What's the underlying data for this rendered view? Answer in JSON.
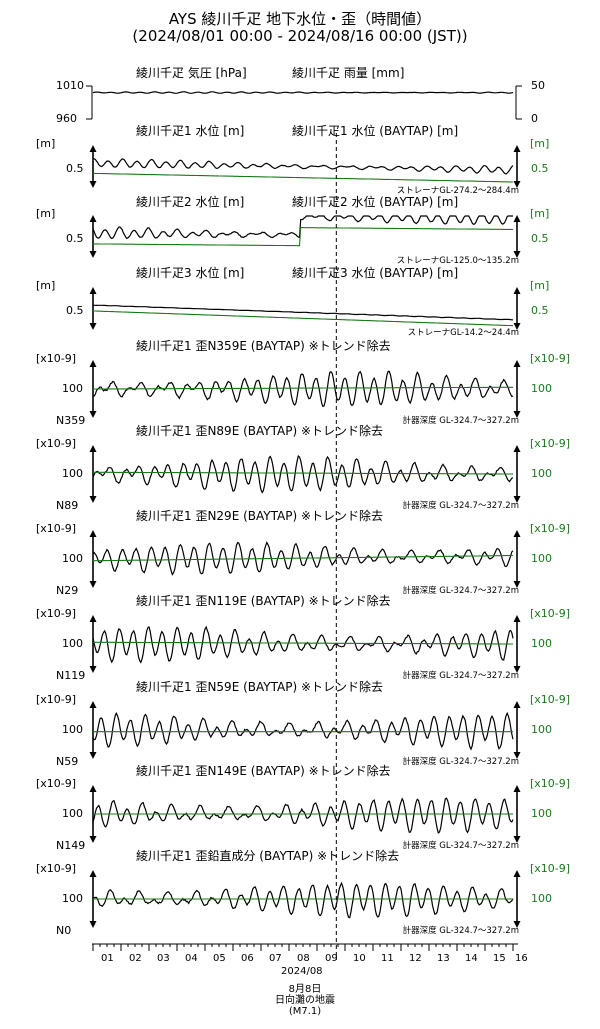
{
  "title": "AYS 綾川千疋 地下水位・歪（時間値）",
  "subtitle": "(2024/08/01 00:00 - 2024/08/16 00:00 (JST))",
  "colors": {
    "observed": "#000000",
    "baytap": "#1a7a1a"
  },
  "chart_data": [
    {
      "type": "line",
      "title_left": "綾川千疋 気圧 [hPa]",
      "title_right": "綾川千疋 雨量 [mm]",
      "left_ticks": [
        "1010",
        "960"
      ],
      "right_ticks": [
        "50",
        "0"
      ],
      "ylim_left": [
        960,
        1010
      ],
      "ylim_right": [
        0,
        50
      ],
      "series": [
        {
          "name": "綾川千疋 気圧 [hPa]",
          "color": "#000000",
          "approx_level": 1000,
          "trend": 0,
          "wave_amp": 0.8,
          "wave_period_days": 0.5
        },
        {
          "name": "綾川千疋 雨量 [mm]",
          "color": "#000000",
          "approx_level": 0,
          "trend": 0,
          "wave_amp": 0,
          "wave_period_days": 1
        }
      ]
    },
    {
      "type": "line",
      "title_left": "綾川千疋1 水位 [m]",
      "title_right": "綾川千疋1 水位 (BAYTAP) [m]",
      "left_unit": "[m]",
      "right_unit": "[m]",
      "left_ticks": [
        "0.5"
      ],
      "right_ticks": [
        "0.5"
      ],
      "note": "ストレーナGL-274.2～284.4m",
      "series": [
        {
          "name": "綾川千疋1 水位 [m]",
          "color": "#000000",
          "approx_level": 0.62,
          "trend": -0.08,
          "wave_amp": 0.035,
          "wave_period_days": 0.5
        },
        {
          "name": "綾川千疋1 水位 (BAYTAP) [m]",
          "color": "#1a7a1a",
          "approx_level": 0.5,
          "trend": -0.1,
          "wave_amp": 0,
          "wave_period_days": 1
        }
      ]
    },
    {
      "type": "line",
      "title_left": "綾川千疋2 水位 [m]",
      "title_right": "綾川千疋2 水位 (BAYTAP) [m]",
      "left_unit": "[m]",
      "right_unit": "[m]",
      "left_ticks": [
        "0.5"
      ],
      "right_ticks": [
        "0.5"
      ],
      "note": "ストレーナGL-125.0～135.2m",
      "step_day": 7.4,
      "step_size": 0.2,
      "series": [
        {
          "name": "綾川千疋2 水位 [m]",
          "color": "#000000",
          "approx_level": 0.52,
          "trend": -0.04,
          "wave_amp": 0.05,
          "wave_period_days": 0.5
        },
        {
          "name": "綾川千疋2 水位 (BAYTAP) [m]",
          "color": "#1a7a1a",
          "approx_level": 0.4,
          "trend": -0.04,
          "wave_amp": 0,
          "wave_period_days": 1
        }
      ]
    },
    {
      "type": "line",
      "title_left": "綾川千疋3 水位 [m]",
      "title_right": "綾川千疋3 水位 (BAYTAP) [m]",
      "left_unit": "[m]",
      "right_unit": "[m]",
      "left_ticks": [
        "0.5"
      ],
      "right_ticks": [
        "0.5"
      ],
      "note": "ストレーナGL-14.2～24.4m",
      "series": [
        {
          "name": "綾川千疋3 水位 [m]",
          "color": "#000000",
          "approx_level": 0.72,
          "trend": -0.3,
          "wave_amp": 0.004,
          "wave_period_days": 0.5
        },
        {
          "name": "綾川千疋3 水位 (BAYTAP) [m]",
          "color": "#1a7a1a",
          "approx_level": 0.6,
          "trend": -0.3,
          "wave_amp": 0,
          "wave_period_days": 1
        }
      ]
    },
    {
      "type": "line",
      "title_left": "綾川千疋1 歪N359E (BAYTAP) ※トレンド除去",
      "left_unit": "[x10-9]",
      "right_unit": "[x10-9]",
      "left_ticks": [
        "100"
      ],
      "right_ticks": [
        "100"
      ],
      "direction": "N359",
      "note": "計器深度 GL-324.7～327.2m",
      "series": [
        {
          "name": "歪N359E",
          "color": "#000000",
          "approx_level": 100,
          "trend": 0,
          "wave_amp": 10,
          "wave_period_days": 0.5
        },
        {
          "name": "歪N359E (BAYTAP)",
          "color": "#1a7a1a",
          "approx_level": 100,
          "trend": 1,
          "wave_amp": 0,
          "wave_period_days": 1
        }
      ]
    },
    {
      "type": "line",
      "title_left": "綾川千疋1 歪N89E (BAYTAP) ※トレンド除去",
      "left_unit": "[x10-9]",
      "right_unit": "[x10-9]",
      "left_ticks": [
        "100"
      ],
      "right_ticks": [
        "100"
      ],
      "direction": "N89",
      "note": "計器深度 GL-324.7～327.2m",
      "series": [
        {
          "name": "歪N89E",
          "color": "#000000",
          "approx_level": 100,
          "trend": 0,
          "wave_amp": 14,
          "wave_period_days": 0.5
        },
        {
          "name": "歪N89E (BAYTAP)",
          "color": "#1a7a1a",
          "approx_level": 101,
          "trend": -1,
          "wave_amp": 0,
          "wave_period_days": 1
        }
      ]
    },
    {
      "type": "line",
      "title_left": "綾川千疋1 歪N29E (BAYTAP) ※トレンド除去",
      "left_unit": "[x10-9]",
      "right_unit": "[x10-9]",
      "left_ticks": [
        "100"
      ],
      "right_ticks": [
        "100"
      ],
      "direction": "N29",
      "note": "計器深度 GL-324.7～327.2m",
      "series": [
        {
          "name": "歪N29E",
          "color": "#000000",
          "approx_level": 100,
          "trend": 2,
          "wave_amp": 8,
          "wave_period_days": 0.5
        },
        {
          "name": "歪N29E (BAYTAP)",
          "color": "#1a7a1a",
          "approx_level": 99,
          "trend": 3,
          "wave_amp": 0,
          "wave_period_days": 1
        }
      ]
    },
    {
      "type": "line",
      "title_left": "綾川千疋1 歪N119E (BAYTAP) ※トレンド除去",
      "left_unit": "[x10-9]",
      "right_unit": "[x10-9]",
      "left_ticks": [
        "100"
      ],
      "right_ticks": [
        "100"
      ],
      "direction": "N119",
      "note": "計器深度 GL-324.7～327.2m",
      "series": [
        {
          "name": "歪N119E",
          "color": "#000000",
          "approx_level": 100,
          "trend": 0,
          "wave_amp": 16,
          "wave_period_days": 0.5
        },
        {
          "name": "歪N119E (BAYTAP)",
          "color": "#1a7a1a",
          "approx_level": 101,
          "trend": -1,
          "wave_amp": 0,
          "wave_period_days": 1
        }
      ]
    },
    {
      "type": "line",
      "title_left": "綾川千疋1 歪N59E (BAYTAP) ※トレンド除去",
      "left_unit": "[x10-9]",
      "right_unit": "[x10-9]",
      "left_ticks": [
        "100"
      ],
      "right_ticks": [
        "100"
      ],
      "direction": "N59",
      "note": "計器深度 GL-324.7～327.2m",
      "series": [
        {
          "name": "歪N59E",
          "color": "#000000",
          "approx_level": 101,
          "trend": 0,
          "wave_amp": 7,
          "wave_period_days": 0.5
        },
        {
          "name": "歪N59E (BAYTAP)",
          "color": "#1a7a1a",
          "approx_level": 100,
          "trend": 0,
          "wave_amp": 0,
          "wave_period_days": 1
        }
      ]
    },
    {
      "type": "line",
      "title_left": "綾川千疋1 歪N149E (BAYTAP) ※トレンド除去",
      "left_unit": "[x10-9]",
      "right_unit": "[x10-9]",
      "left_ticks": [
        "100"
      ],
      "right_ticks": [
        "100"
      ],
      "direction": "N149",
      "note": "計器深度 GL-324.7～327.2m",
      "series": [
        {
          "name": "歪N149E",
          "color": "#000000",
          "approx_level": 100,
          "trend": 0,
          "wave_amp": 11,
          "wave_period_days": 0.5
        },
        {
          "name": "歪N149E (BAYTAP)",
          "color": "#1a7a1a",
          "approx_level": 100,
          "trend": 0,
          "wave_amp": 0,
          "wave_period_days": 1
        }
      ]
    },
    {
      "type": "line",
      "title_left": "綾川千疋1 歪鉛直成分 (BAYTAP) ※トレンド除去",
      "left_unit": "[x10-9]",
      "right_unit": "[x10-9]",
      "left_ticks": [
        "100"
      ],
      "right_ticks": [
        "100"
      ],
      "direction": "N0",
      "note": "計器深度 GL-324.7～327.2m",
      "series": [
        {
          "name": "歪鉛直成分",
          "color": "#000000",
          "approx_level": 100,
          "trend": 0,
          "wave_amp": 18,
          "wave_period_days": 0.5
        },
        {
          "name": "歪鉛直成分 (BAYTAP)",
          "color": "#1a7a1a",
          "approx_level": 100,
          "trend": 0,
          "wave_amp": 0,
          "wave_period_days": 1
        }
      ]
    }
  ],
  "x_axis": {
    "start": "2024/08/01 00:00",
    "end": "2024/08/16 00:00",
    "tick_labels": [
      "01",
      "02",
      "03",
      "04",
      "05",
      "06",
      "07",
      "08",
      "09",
      "10",
      "11",
      "12",
      "13",
      "14",
      "15",
      "16"
    ],
    "month_label": "2024/08"
  },
  "event": {
    "day": 8.69,
    "label_lines": [
      "8月8日",
      "日向灘の地震",
      "(M7.1)"
    ]
  }
}
